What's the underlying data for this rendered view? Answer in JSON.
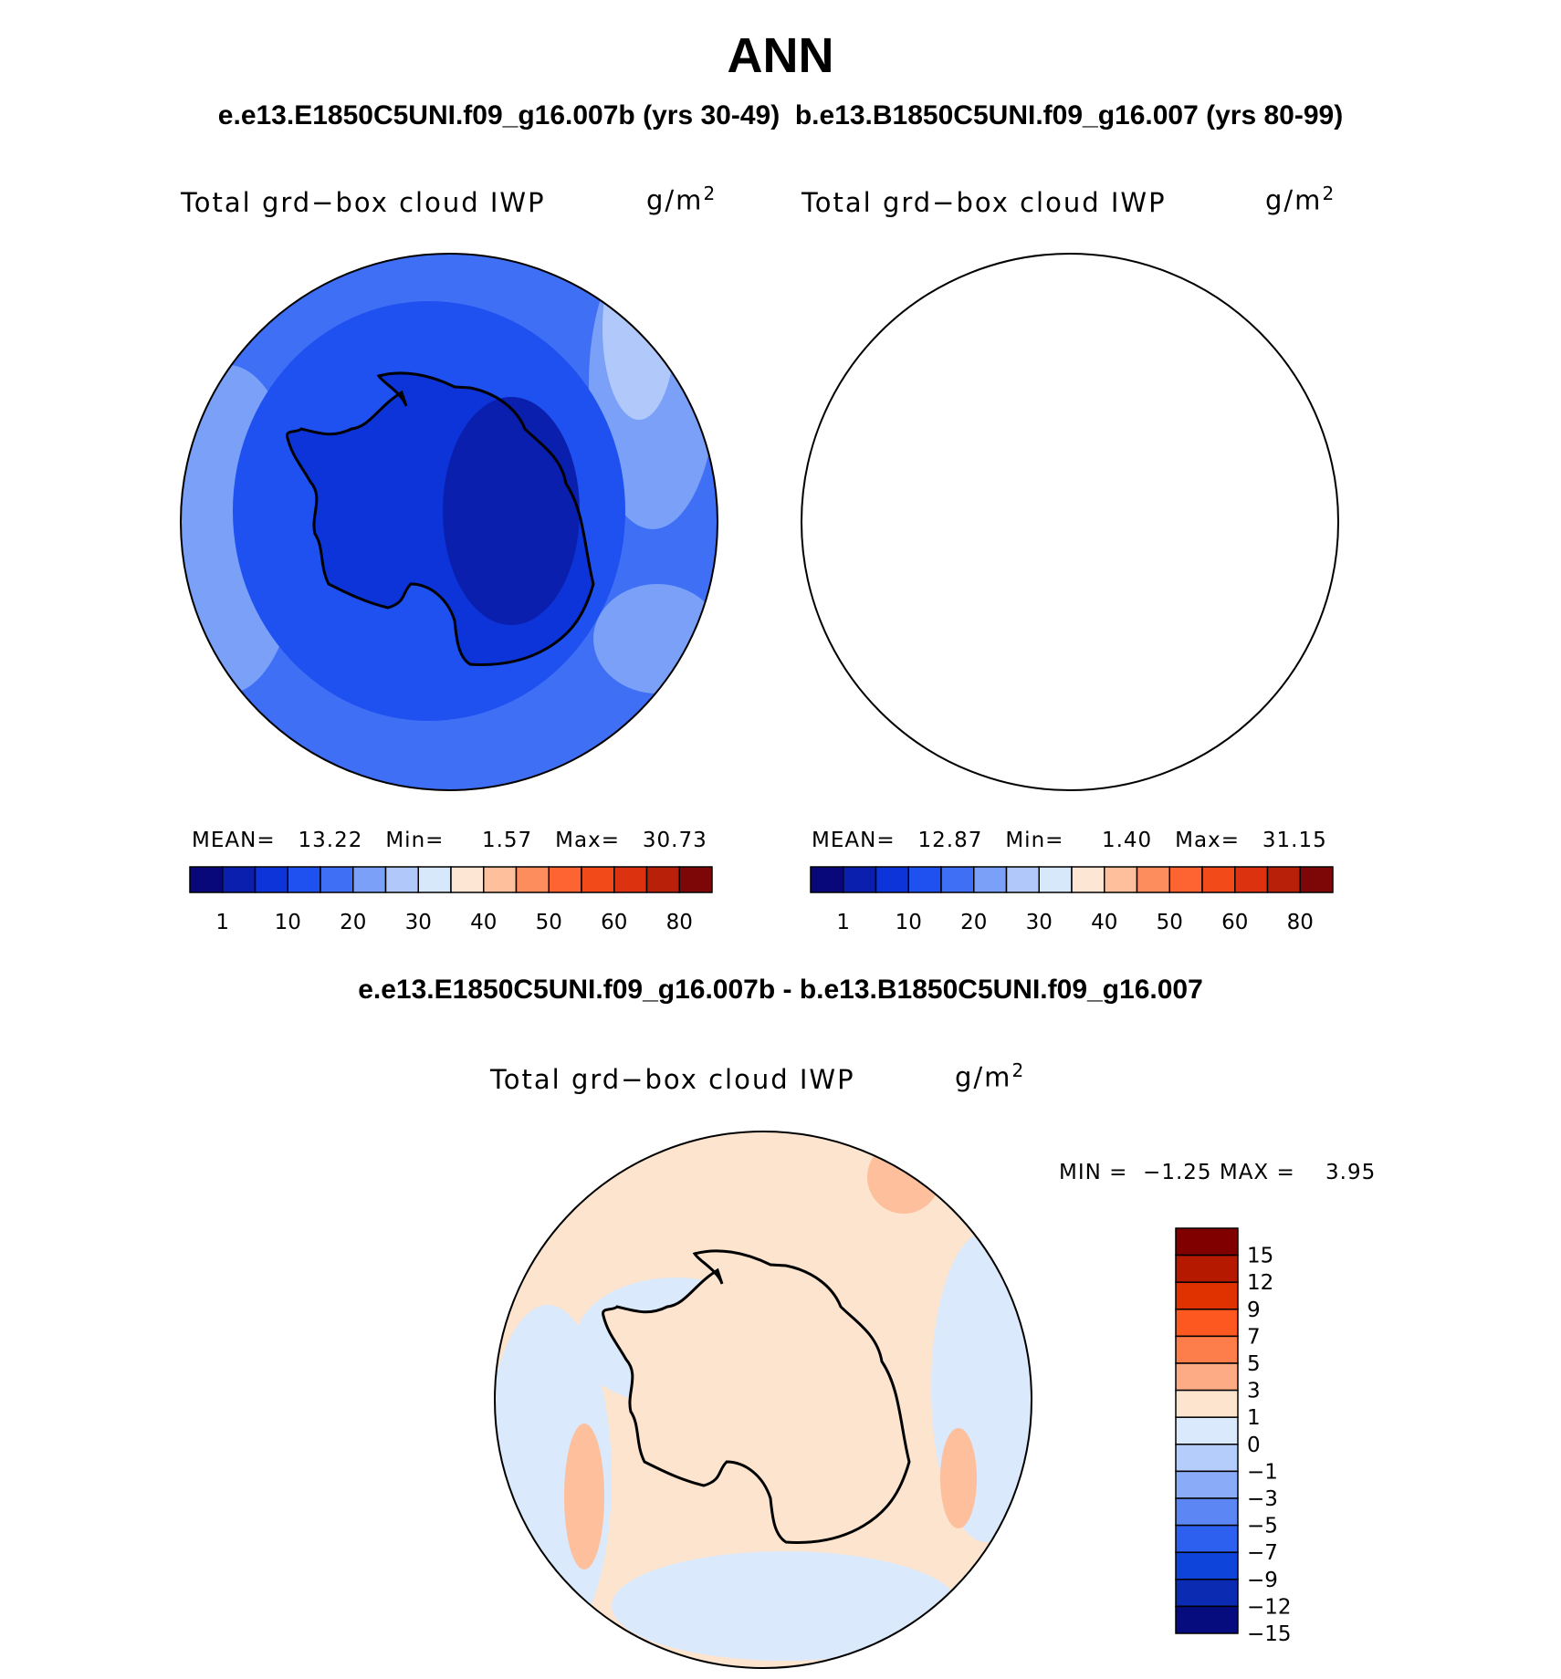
{
  "title": "ANN",
  "subtitle": "e.e13.E1850C5UNI.f09_g16.007b (yrs 30-49)  b.e13.B1850C5UNI.f09_g16.007 (yrs 80-99)",
  "difference_title": "e.e13.E1850C5UNI.f09_g16.007b - b.e13.B1850C5UNI.f09_g16.007",
  "panels": [
    {
      "variable": "Total grd−box cloud IWP",
      "units_base": "g/m",
      "units_exp": "2",
      "stats": {
        "mean_label": "MEAN=",
        "mean": "13.22",
        "min_label": "Min=",
        "min": "1.57",
        "max_label": "Max=",
        "max": "30.73"
      }
    },
    {
      "variable": "Total grd−box cloud IWP",
      "units_base": "g/m",
      "units_exp": "2",
      "stats": {
        "mean_label": "MEAN=",
        "mean": "12.87",
        "min_label": "Min=",
        "min": "1.40",
        "max_label": "Max=",
        "max": "31.15"
      }
    },
    {
      "variable": "Total grd−box cloud IWP",
      "units_base": "g/m",
      "units_exp": "2",
      "stats": {
        "min_label": "MIN =",
        "min": "−1.25",
        "max_label": "MAX =",
        "max": "3.95"
      }
    }
  ],
  "colorbar_main": {
    "colors": [
      "#08087a",
      "#0a1fae",
      "#0c34d8",
      "#1f50f0",
      "#3f6ff5",
      "#7aa0f8",
      "#b0c8fa",
      "#d8e8fb",
      "#fde7d4",
      "#fdbf9c",
      "#fd8d5c",
      "#fd6432",
      "#f34a1a",
      "#dc3210",
      "#b8200a",
      "#7d0606"
    ],
    "labels": [
      "1",
      "10",
      "20",
      "30",
      "40",
      "50",
      "60",
      "80"
    ]
  },
  "colorbar_diff": {
    "colors_top_to_bottom": [
      "#800000",
      "#b51a00",
      "#e03200",
      "#fd5820",
      "#fd7e4a",
      "#fdab84",
      "#fde4cf",
      "#dae9fb",
      "#b4cdfa",
      "#8aacf8",
      "#5c86f4",
      "#2d60ee",
      "#0f44da",
      "#0a2bb2",
      "#060c7e"
    ],
    "labels": [
      "15",
      "12",
      "9",
      "7",
      "5",
      "3",
      "1",
      "0",
      "−1",
      "−3",
      "−5",
      "−7",
      "−9",
      "−12",
      "−15"
    ]
  },
  "map_colors": {
    "ocean_mid": "#3f6ff5",
    "ocean_light": "#7aa0f8",
    "ocean_lighter": "#b0c8fa",
    "ocean_dark": "#1f50f0",
    "land_mid": "#0c34d8",
    "land_dark": "#0a1fae",
    "diff_pos": "#fde4cf",
    "diff_pos_strong": "#fdbf9c",
    "diff_neg": "#dae9fb",
    "coastline": "#000000"
  }
}
